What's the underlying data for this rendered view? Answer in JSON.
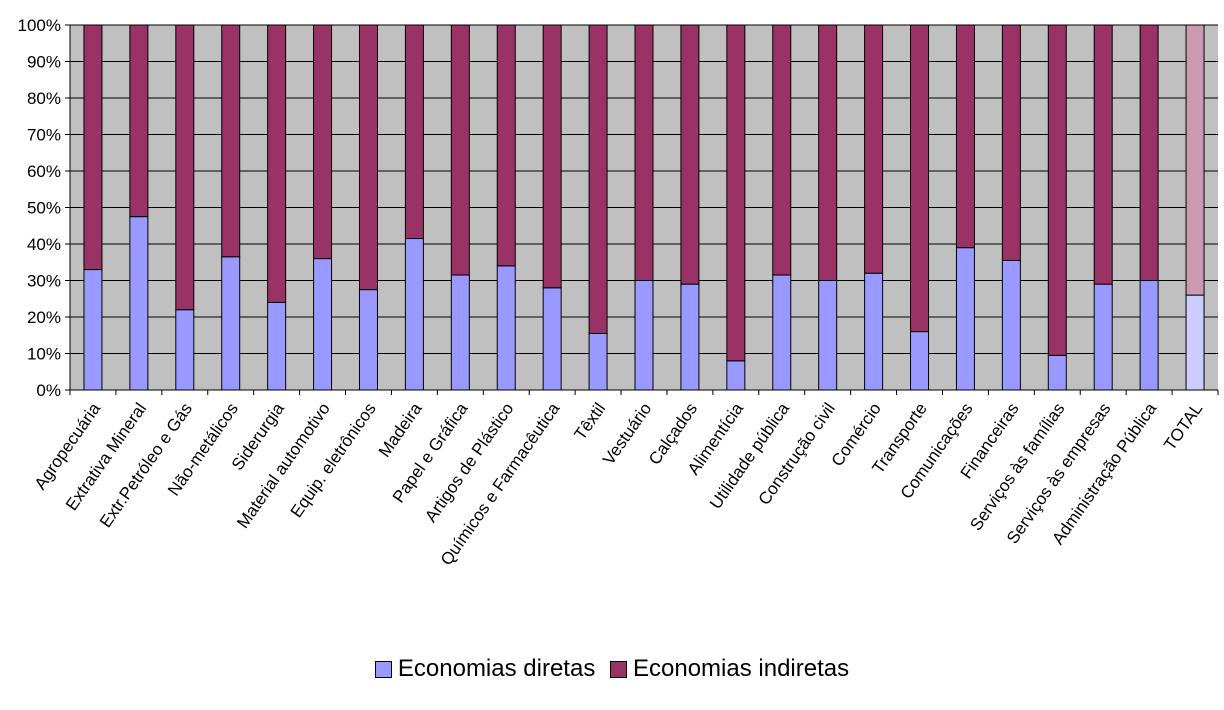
{
  "chart_data": {
    "type": "bar",
    "stacked": true,
    "percent": true,
    "categories": [
      "Agropecuária",
      "Extrativa Mineral",
      "Extr.Petróleo e Gás",
      "Não-metálicos",
      "Siderurgia",
      "Material automotivo",
      "Equip. eletrônicos",
      "Madeira",
      "Papel e Gráfica",
      "Artigos de Plástico",
      "Químicos e Farmacêutica",
      "Têxtil",
      "Vestuário",
      "Calçados",
      "Alimentícia",
      "Utilidade pública",
      "Construção civil",
      "Comércio",
      "Transporte",
      "Comunicações",
      "Financeiras",
      "Serviços às famílias",
      "Serviços às empresas",
      "Administração Pública",
      "TOTAL"
    ],
    "series": [
      {
        "name": "Economias diretas",
        "color": "#9999ff",
        "values": [
          33,
          47.5,
          22,
          36.5,
          24,
          36,
          27.5,
          41.5,
          31.5,
          34,
          28,
          15.5,
          30,
          29,
          8,
          31.5,
          30,
          32,
          16,
          39,
          35.5,
          9.5,
          29,
          30,
          26
        ]
      },
      {
        "name": "Economias indiretas",
        "color": "#993366",
        "values": [
          67,
          52.5,
          78,
          63.5,
          76,
          64,
          72.5,
          58.5,
          68.5,
          66,
          72,
          84.5,
          70,
          71,
          92,
          68.5,
          70,
          68,
          84,
          61,
          64.5,
          90.5,
          71,
          70,
          74
        ]
      }
    ],
    "highlight": {
      "category": "TOTAL",
      "colors": [
        "#ccccff",
        "#cc99b3"
      ]
    },
    "yticks": [
      "0%",
      "10%",
      "20%",
      "30%",
      "40%",
      "50%",
      "60%",
      "70%",
      "80%",
      "90%",
      "100%"
    ],
    "ylim": [
      0,
      100
    ],
    "plot_background": "#c0c0c0",
    "grid": true,
    "legend_position": "bottom",
    "title": "",
    "xlabel": "",
    "ylabel": ""
  }
}
